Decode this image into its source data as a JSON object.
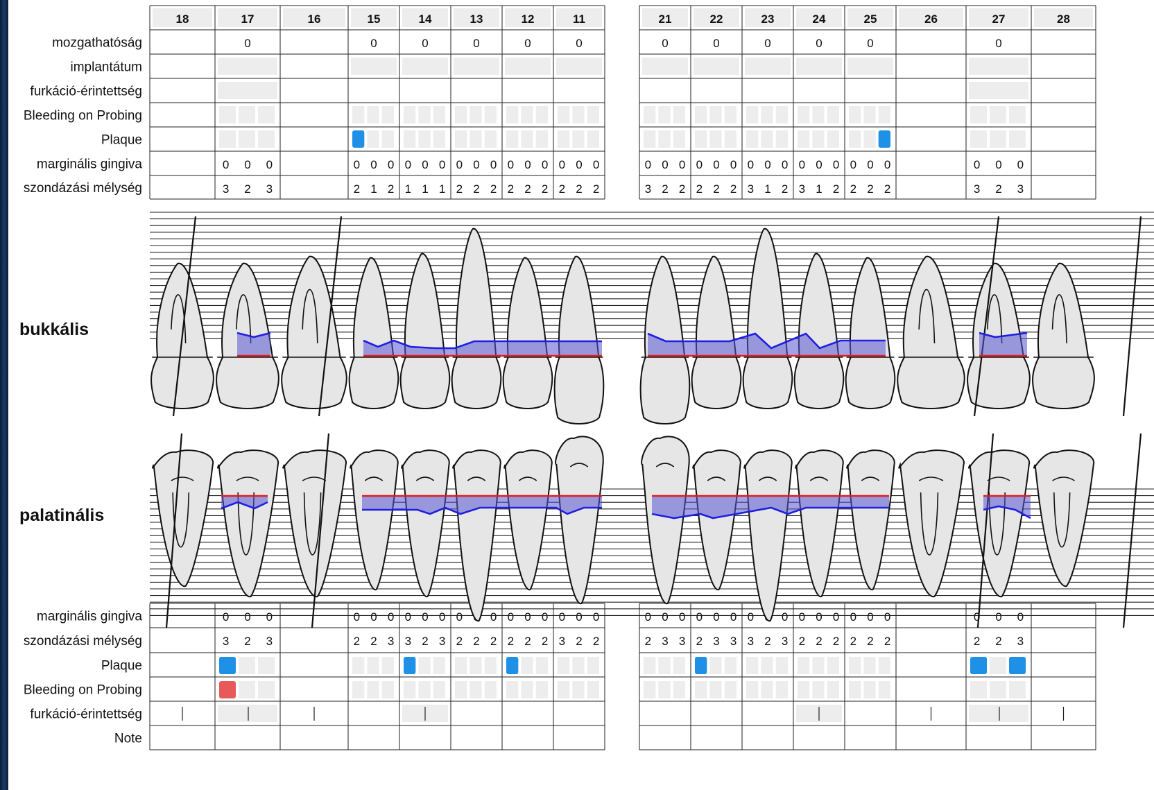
{
  "teeth_left": [
    "18",
    "17",
    "16",
    "15",
    "14",
    "13",
    "12",
    "11"
  ],
  "teeth_right": [
    "21",
    "22",
    "23",
    "24",
    "25",
    "26",
    "27",
    "28"
  ],
  "section_labels": {
    "buccal": "bukkális",
    "palatal": "palatinális"
  },
  "upper_rows": [
    "mozgathatóság",
    "implantátum",
    "furkáció-érintettség",
    "Bleeding on Probing",
    "Plaque",
    "marginális gingiva",
    "szondázási mélység"
  ],
  "lower_rows": [
    "marginális gingiva",
    "szondázási mélység",
    "Plaque",
    "Bleeding on Probing",
    "furkáció-érintettség",
    "Note"
  ],
  "teeth": {
    "18": {
      "missing": true
    },
    "17": {
      "mobility": "0",
      "upper_mg": [
        "0",
        "0",
        "0"
      ],
      "upper_pd": [
        "3",
        "2",
        "3"
      ],
      "lower_mg": [
        "0",
        "0",
        "0"
      ],
      "lower_pd": [
        "3",
        "2",
        "3"
      ],
      "upper_plaque": [
        0,
        0,
        0
      ],
      "lower_plaque": [
        1,
        0,
        0
      ],
      "lower_bop": [
        1,
        0,
        0
      ]
    },
    "16": {
      "missing": true
    },
    "15": {
      "mobility": "0",
      "upper_mg": [
        "0",
        "0",
        "0"
      ],
      "upper_pd": [
        "2",
        "1",
        "2"
      ],
      "lower_mg": [
        "0",
        "0",
        "0"
      ],
      "lower_pd": [
        "2",
        "2",
        "3"
      ],
      "upper_plaque": [
        1,
        0,
        0
      ],
      "lower_plaque": [
        0,
        0,
        0
      ],
      "lower_bop": [
        0,
        0,
        0
      ]
    },
    "14": {
      "mobility": "0",
      "upper_mg": [
        "0",
        "0",
        "0"
      ],
      "upper_pd": [
        "1",
        "1",
        "1"
      ],
      "lower_mg": [
        "0",
        "0",
        "0"
      ],
      "lower_pd": [
        "3",
        "2",
        "3"
      ],
      "upper_plaque": [
        0,
        0,
        0
      ],
      "lower_plaque": [
        1,
        0,
        0
      ],
      "lower_bop": [
        0,
        0,
        0
      ]
    },
    "13": {
      "mobility": "0",
      "upper_mg": [
        "0",
        "0",
        "0"
      ],
      "upper_pd": [
        "2",
        "2",
        "2"
      ],
      "lower_mg": [
        "0",
        "0",
        "0"
      ],
      "lower_pd": [
        "2",
        "2",
        "2"
      ],
      "upper_plaque": [
        0,
        0,
        0
      ],
      "lower_plaque": [
        0,
        0,
        0
      ],
      "lower_bop": [
        0,
        0,
        0
      ]
    },
    "12": {
      "mobility": "0",
      "upper_mg": [
        "0",
        "0",
        "0"
      ],
      "upper_pd": [
        "2",
        "2",
        "2"
      ],
      "lower_mg": [
        "0",
        "0",
        "0"
      ],
      "lower_pd": [
        "2",
        "2",
        "2"
      ],
      "upper_plaque": [
        0,
        0,
        0
      ],
      "lower_plaque": [
        1,
        0,
        0
      ],
      "lower_bop": [
        0,
        0,
        0
      ]
    },
    "11": {
      "mobility": "0",
      "upper_mg": [
        "0",
        "0",
        "0"
      ],
      "upper_pd": [
        "2",
        "2",
        "2"
      ],
      "lower_mg": [
        "0",
        "0",
        "0"
      ],
      "lower_pd": [
        "3",
        "2",
        "2"
      ],
      "upper_plaque": [
        0,
        0,
        0
      ],
      "lower_plaque": [
        0,
        0,
        0
      ],
      "lower_bop": [
        0,
        0,
        0
      ]
    },
    "21": {
      "mobility": "0",
      "upper_mg": [
        "0",
        "0",
        "0"
      ],
      "upper_pd": [
        "3",
        "2",
        "2"
      ],
      "lower_mg": [
        "0",
        "0",
        "0"
      ],
      "lower_pd": [
        "2",
        "3",
        "3"
      ],
      "upper_plaque": [
        0,
        0,
        0
      ],
      "lower_plaque": [
        0,
        0,
        0
      ],
      "lower_bop": [
        0,
        0,
        0
      ]
    },
    "22": {
      "mobility": "0",
      "upper_mg": [
        "0",
        "0",
        "0"
      ],
      "upper_pd": [
        "2",
        "2",
        "2"
      ],
      "lower_mg": [
        "0",
        "0",
        "0"
      ],
      "lower_pd": [
        "2",
        "3",
        "3"
      ],
      "upper_plaque": [
        0,
        0,
        0
      ],
      "lower_plaque": [
        1,
        0,
        0
      ],
      "lower_bop": [
        0,
        0,
        0
      ]
    },
    "23": {
      "mobility": "0",
      "upper_mg": [
        "0",
        "0",
        "0"
      ],
      "upper_pd": [
        "3",
        "1",
        "2"
      ],
      "lower_mg": [
        "0",
        "0",
        "0"
      ],
      "lower_pd": [
        "3",
        "2",
        "3"
      ],
      "upper_plaque": [
        0,
        0,
        0
      ],
      "lower_plaque": [
        0,
        0,
        0
      ],
      "lower_bop": [
        0,
        0,
        0
      ]
    },
    "24": {
      "mobility": "0",
      "upper_mg": [
        "0",
        "0",
        "0"
      ],
      "upper_pd": [
        "3",
        "1",
        "2"
      ],
      "lower_mg": [
        "0",
        "0",
        "0"
      ],
      "lower_pd": [
        "2",
        "2",
        "2"
      ],
      "upper_plaque": [
        0,
        0,
        0
      ],
      "lower_plaque": [
        0,
        0,
        0
      ],
      "lower_bop": [
        0,
        0,
        0
      ]
    },
    "25": {
      "mobility": "0",
      "upper_mg": [
        "0",
        "0",
        "0"
      ],
      "upper_pd": [
        "2",
        "2",
        "2"
      ],
      "lower_mg": [
        "0",
        "0",
        "0"
      ],
      "lower_pd": [
        "2",
        "2",
        "2"
      ],
      "upper_plaque": [
        0,
        0,
        1
      ],
      "lower_plaque": [
        0,
        0,
        0
      ],
      "lower_bop": [
        0,
        0,
        0
      ]
    },
    "26": {
      "missing": true
    },
    "27": {
      "mobility": "0",
      "upper_mg": [
        "0",
        "0",
        "0"
      ],
      "upper_pd": [
        "3",
        "2",
        "3"
      ],
      "lower_mg": [
        "0",
        "0",
        "0"
      ],
      "lower_pd": [
        "2",
        "2",
        "3"
      ],
      "upper_plaque": [
        0,
        0,
        0
      ],
      "lower_plaque": [
        1,
        0,
        1
      ],
      "lower_bop": [
        0,
        0,
        0
      ]
    },
    "28": {
      "missing": true
    }
  },
  "colors": {
    "plaque": "#1e90e6",
    "bleeding": "#e85a5a",
    "pocket_fill": "#5a55d2",
    "pocket_line": "#1f1fe0",
    "gingival_margin": "#e01f1f",
    "empty_cell": "#ededed"
  }
}
